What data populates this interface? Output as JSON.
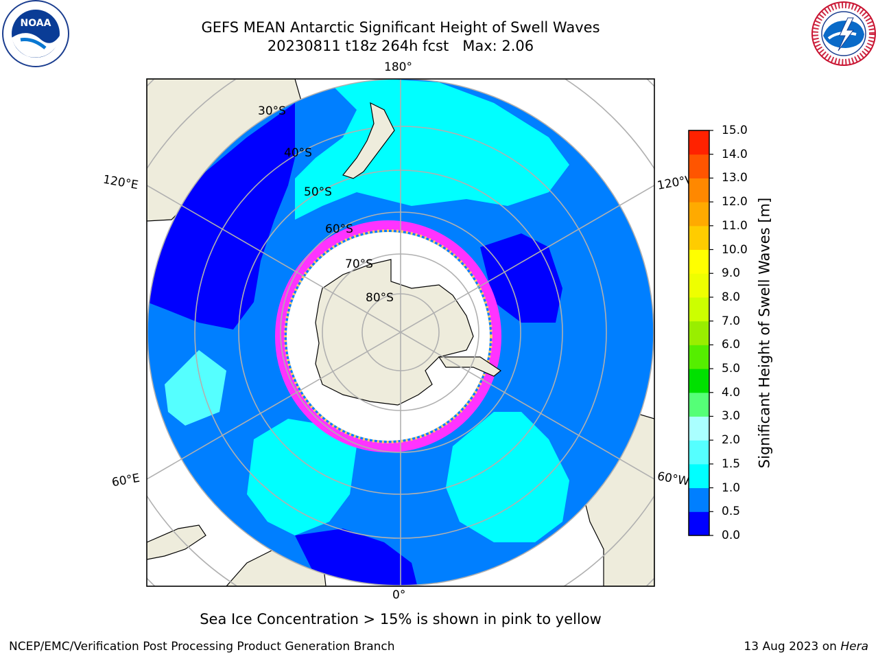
{
  "header": {
    "title_line1": "GEFS MEAN Antarctic Significant Height of Swell Waves",
    "title_line2": "20230811 t18z 264h fcst   Max: 2.06"
  },
  "logos": {
    "left": {
      "icon": "noaa-logo-icon",
      "text": "NOAA"
    },
    "right": {
      "icon": "nws-logo-icon",
      "text": "NATIONAL WEATHER SERVICE"
    }
  },
  "map": {
    "projection": "south-polar-stereographic",
    "longitude_labels": {
      "top": "180°",
      "bottom": "0°",
      "upper_left": "120°E",
      "upper_right": "120°W",
      "lower_left": "60°E",
      "lower_right": "60°W"
    },
    "latitude_labels": [
      "30°S",
      "40°S",
      "50°S",
      "60°S",
      "70°S",
      "80°S"
    ],
    "colors": {
      "land": "#eeecdc",
      "ocean_0_0.5": "#0000ff",
      "ocean_0.5_1.0": "#007fff",
      "ocean_1.0_1.5": "#00ffff",
      "sea_ice_low": "#ff33ff",
      "sea_ice_high": "#ffff66",
      "grid": "#b0b0b0"
    }
  },
  "colorbar": {
    "label": "Significant Height of Swell Waves [m]",
    "ticks": [
      "0.0",
      "0.5",
      "1.0",
      "1.5",
      "2.0",
      "3.0",
      "4.0",
      "5.0",
      "6.0",
      "7.0",
      "8.0",
      "9.0",
      "10.0",
      "11.0",
      "12.0",
      "13.0",
      "14.0",
      "15.0"
    ],
    "colors": [
      "#0000ff",
      "#007fff",
      "#00ffff",
      "#55ffff",
      "#aaffff",
      "#55ff77",
      "#00e000",
      "#55ee00",
      "#99ee00",
      "#ccff00",
      "#eeff00",
      "#ffff00",
      "#ffcc00",
      "#ffaa00",
      "#ff8800",
      "#ff5500",
      "#ff2200"
    ]
  },
  "footer": {
    "note": "Sea Ice Concentration > 15% is shown in pink to yellow",
    "credit": "NCEP/EMC/Verification Post Processing Product Generation Branch",
    "date": "13 Aug 2023 on ",
    "machine": "Hera"
  }
}
